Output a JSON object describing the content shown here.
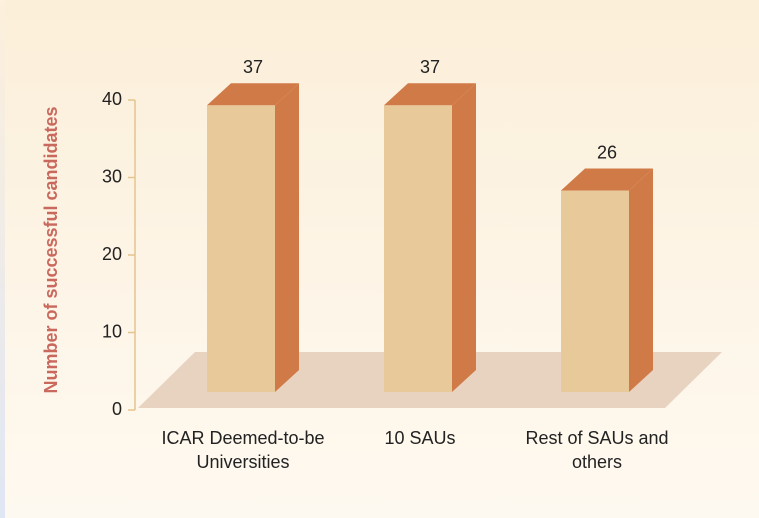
{
  "chart_data": {
    "type": "bar3d",
    "ylabel": "Number of successful candidates",
    "categories": [
      "ICAR Deemed-to-be Universities",
      "10 SAUs",
      "Rest of SAUs and others"
    ],
    "values": [
      37,
      37,
      26
    ],
    "color": "#e8c99a",
    "side_color": "#d07a48",
    "ylim": [
      0,
      40
    ],
    "yticks": [
      0,
      10,
      20,
      30,
      40
    ]
  }
}
